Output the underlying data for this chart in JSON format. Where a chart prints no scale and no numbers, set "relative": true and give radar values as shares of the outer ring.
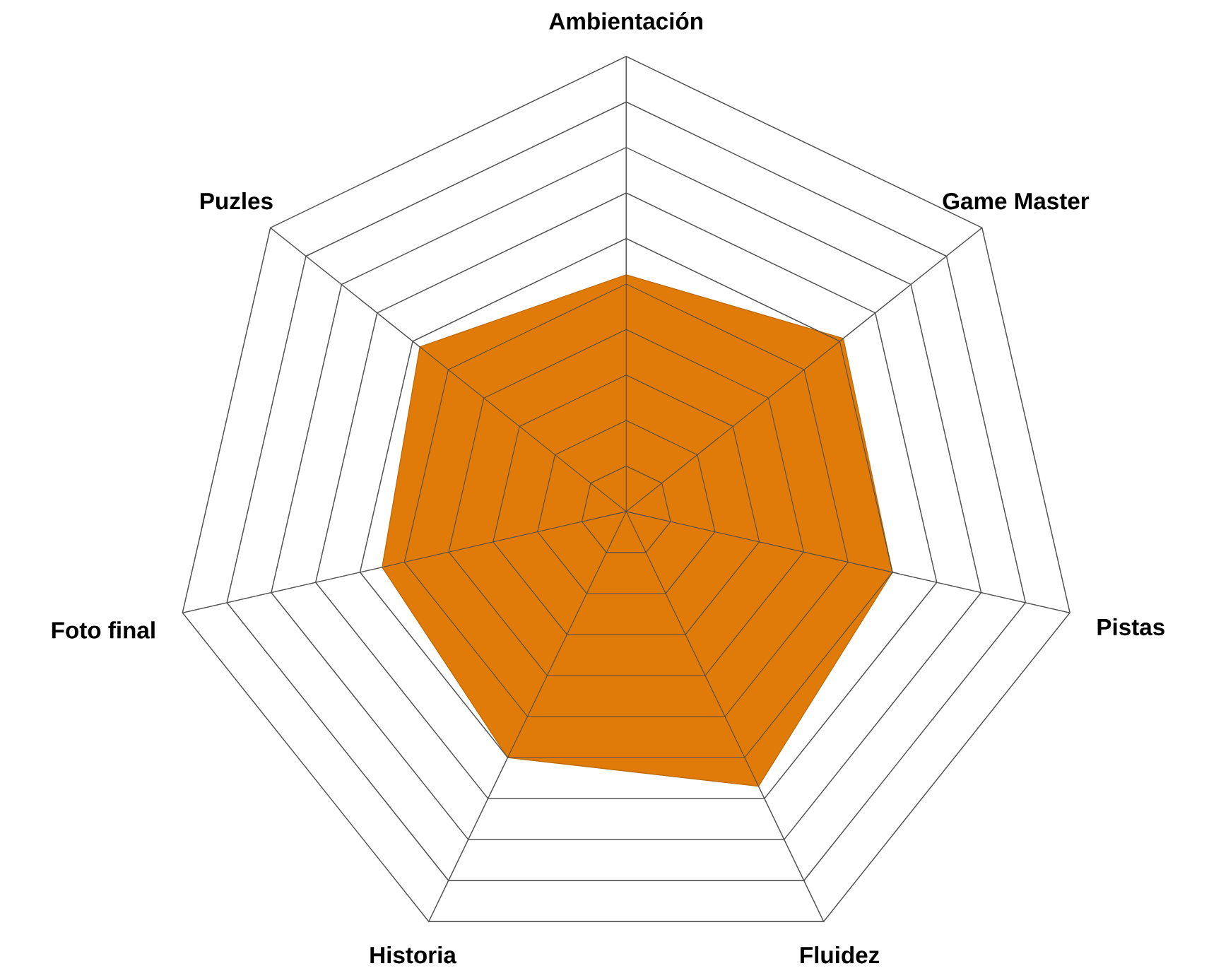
{
  "chart_data": {
    "type": "radar",
    "relative": true,
    "grid": true,
    "categories": [
      "Ambientación",
      "Game Master",
      "Pistas",
      "Fluidez",
      "Historia",
      "Foto final",
      "Puzles"
    ],
    "series": [
      {
        "color": "#e07b09",
        "values": [
          0.52,
          0.61,
          0.6,
          0.67,
          0.6,
          0.55,
          0.58
        ]
      }
    ]
  }
}
